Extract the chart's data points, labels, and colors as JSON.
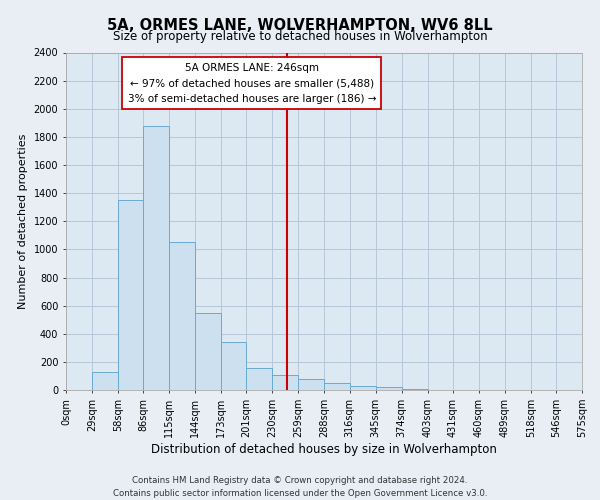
{
  "title": "5A, ORMES LANE, WOLVERHAMPTON, WV6 8LL",
  "subtitle": "Size of property relative to detached houses in Wolverhampton",
  "xlabel": "Distribution of detached houses by size in Wolverhampton",
  "ylabel": "Number of detached properties",
  "bin_labels": [
    "0sqm",
    "29sqm",
    "58sqm",
    "86sqm",
    "115sqm",
    "144sqm",
    "173sqm",
    "201sqm",
    "230sqm",
    "259sqm",
    "288sqm",
    "316sqm",
    "345sqm",
    "374sqm",
    "403sqm",
    "431sqm",
    "460sqm",
    "489sqm",
    "518sqm",
    "546sqm",
    "575sqm"
  ],
  "bar_values": [
    0,
    125,
    1350,
    1880,
    1050,
    550,
    340,
    155,
    105,
    75,
    50,
    30,
    22,
    8,
    3,
    1,
    1,
    0,
    0,
    1,
    0
  ],
  "bar_color": "#cde0f0",
  "bar_edge_color": "#6aaad4",
  "property_line_x": 246,
  "property_line_color": "#cc0000",
  "annotation_title": "5A ORMES LANE: 246sqm",
  "annotation_line1": "← 97% of detached houses are smaller (5,488)",
  "annotation_line2": "3% of semi-detached houses are larger (186) →",
  "annotation_box_color": "#ffffff",
  "annotation_box_edge": "#cc0000",
  "ylim": [
    0,
    2400
  ],
  "yticks": [
    0,
    200,
    400,
    600,
    800,
    1000,
    1200,
    1400,
    1600,
    1800,
    2000,
    2200,
    2400
  ],
  "bin_edges": [
    0,
    29,
    58,
    86,
    115,
    144,
    173,
    201,
    230,
    259,
    288,
    316,
    345,
    374,
    403,
    431,
    460,
    489,
    518,
    546,
    575
  ],
  "footnote1": "Contains HM Land Registry data © Crown copyright and database right 2024.",
  "footnote2": "Contains public sector information licensed under the Open Government Licence v3.0.",
  "bg_color": "#e8eef4",
  "plot_bg_color": "#dce8f2",
  "grid_color": "#b8c8d8",
  "title_fontsize": 10.5,
  "subtitle_fontsize": 8.5,
  "xlabel_fontsize": 8.5,
  "ylabel_fontsize": 8,
  "tick_fontsize": 7,
  "annotation_fontsize": 7.5,
  "footnote_fontsize": 6.2
}
